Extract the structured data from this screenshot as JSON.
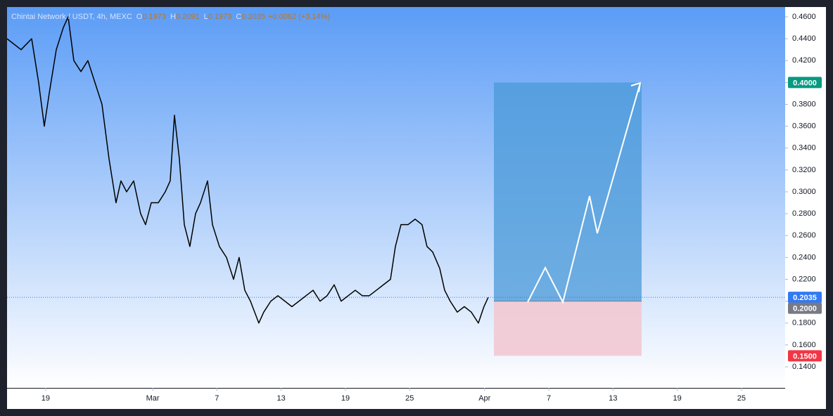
{
  "chart_data": {
    "type": "line",
    "legend": {
      "symbol": "Chintai Network / USDT, 4h, MEXC",
      "ohlc": [
        {
          "key": "O",
          "value": "0.1973"
        },
        {
          "key": "H",
          "value": "0.2091"
        },
        {
          "key": "L",
          "value": "0.1973"
        },
        {
          "key": "C",
          "value": "0.2035"
        }
      ],
      "change": "+0.0062 (+3.14%)"
    },
    "series": [
      {
        "name": "Chintai Network / USDT",
        "color": "#000000",
        "x": [
          -3.61,
          -2.3,
          -1.31,
          -0.66,
          -0.13,
          0.33,
          0.99,
          1.64,
          2.1,
          2.63,
          3.29,
          3.94,
          4.6,
          5.26,
          5.92,
          6.57,
          7.03,
          7.56,
          8.22,
          8.87,
          9.33,
          9.86,
          10.52,
          11.17,
          11.63,
          12.03,
          12.49,
          12.95,
          13.47,
          14.0,
          14.46,
          15.12,
          15.58,
          16.23,
          16.89,
          17.55,
          18.07,
          18.6,
          19.13,
          19.52,
          19.91,
          20.37,
          21.03,
          21.69,
          22.35,
          23.0,
          23.66,
          24.32,
          24.98,
          25.63,
          26.29,
          26.95,
          27.6,
          28.26,
          28.92,
          29.58,
          30.23,
          30.89,
          31.55,
          32.21,
          32.67,
          33.19,
          33.85,
          34.51,
          35.16,
          35.62,
          36.15,
          36.81,
          37.27,
          37.79,
          38.45,
          39.11,
          39.76,
          40.42,
          40.94,
          41.34
        ],
        "values": [
          0.44,
          0.43,
          0.44,
          0.4,
          0.36,
          0.39,
          0.43,
          0.45,
          0.46,
          0.42,
          0.41,
          0.42,
          0.4,
          0.38,
          0.33,
          0.29,
          0.31,
          0.3,
          0.31,
          0.28,
          0.27,
          0.29,
          0.29,
          0.3,
          0.31,
          0.37,
          0.33,
          0.27,
          0.25,
          0.28,
          0.29,
          0.31,
          0.27,
          0.25,
          0.24,
          0.22,
          0.24,
          0.21,
          0.2,
          0.19,
          0.18,
          0.19,
          0.2,
          0.205,
          0.2,
          0.195,
          0.2,
          0.205,
          0.21,
          0.2,
          0.205,
          0.215,
          0.2,
          0.205,
          0.21,
          0.205,
          0.205,
          0.21,
          0.215,
          0.22,
          0.25,
          0.27,
          0.27,
          0.275,
          0.27,
          0.25,
          0.245,
          0.23,
          0.21,
          0.2,
          0.19,
          0.195,
          0.19,
          0.18,
          0.195,
          0.2035
        ]
      }
    ],
    "last_price": {
      "value": 0.2035,
      "label": "0.2035",
      "color": "#3179f5"
    },
    "position": {
      "start": 41.87,
      "end": 55.67,
      "target": {
        "value": 0.4,
        "label": "0.4000",
        "color": "#089981"
      },
      "entry": {
        "value": 0.2,
        "label": "0.2000",
        "color": "#787b86"
      },
      "stop": {
        "value": 0.15,
        "label": "0.1500",
        "color": "#f23645"
      }
    },
    "xlim": [
      -3.61,
      69.08
    ],
    "xticks": [
      {
        "value": 0,
        "label": "19"
      },
      {
        "value": 10,
        "label": "Mar"
      },
      {
        "value": 16,
        "label": "7"
      },
      {
        "value": 22,
        "label": "13"
      },
      {
        "value": 28,
        "label": "19"
      },
      {
        "value": 34,
        "label": "25"
      },
      {
        "value": 41,
        "label": "Apr"
      },
      {
        "value": 47,
        "label": "7"
      },
      {
        "value": 53,
        "label": "13"
      },
      {
        "value": 59,
        "label": "19"
      },
      {
        "value": 65,
        "label": "25"
      }
    ],
    "ylim": [
      0.1207,
      0.469
    ],
    "yticks": [
      {
        "value": 0.14,
        "label": "0.1400"
      },
      {
        "value": 0.16,
        "label": "0.1600"
      },
      {
        "value": 0.18,
        "label": "0.1800"
      },
      {
        "value": 0.2,
        "label": "0.2000"
      },
      {
        "value": 0.22,
        "label": "0.2200"
      },
      {
        "value": 0.24,
        "label": "0.2400"
      },
      {
        "value": 0.26,
        "label": "0.2600"
      },
      {
        "value": 0.28,
        "label": "0.2800"
      },
      {
        "value": 0.3,
        "label": "0.3000"
      },
      {
        "value": 0.32,
        "label": "0.3200"
      },
      {
        "value": 0.34,
        "label": "0.3400"
      },
      {
        "value": 0.36,
        "label": "0.3600"
      },
      {
        "value": 0.38,
        "label": "0.3800"
      },
      {
        "value": 0.4,
        "label": "0.4000"
      },
      {
        "value": 0.42,
        "label": "0.4200"
      },
      {
        "value": 0.44,
        "label": "0.4400"
      },
      {
        "value": 0.46,
        "label": "0.4600"
      }
    ]
  }
}
